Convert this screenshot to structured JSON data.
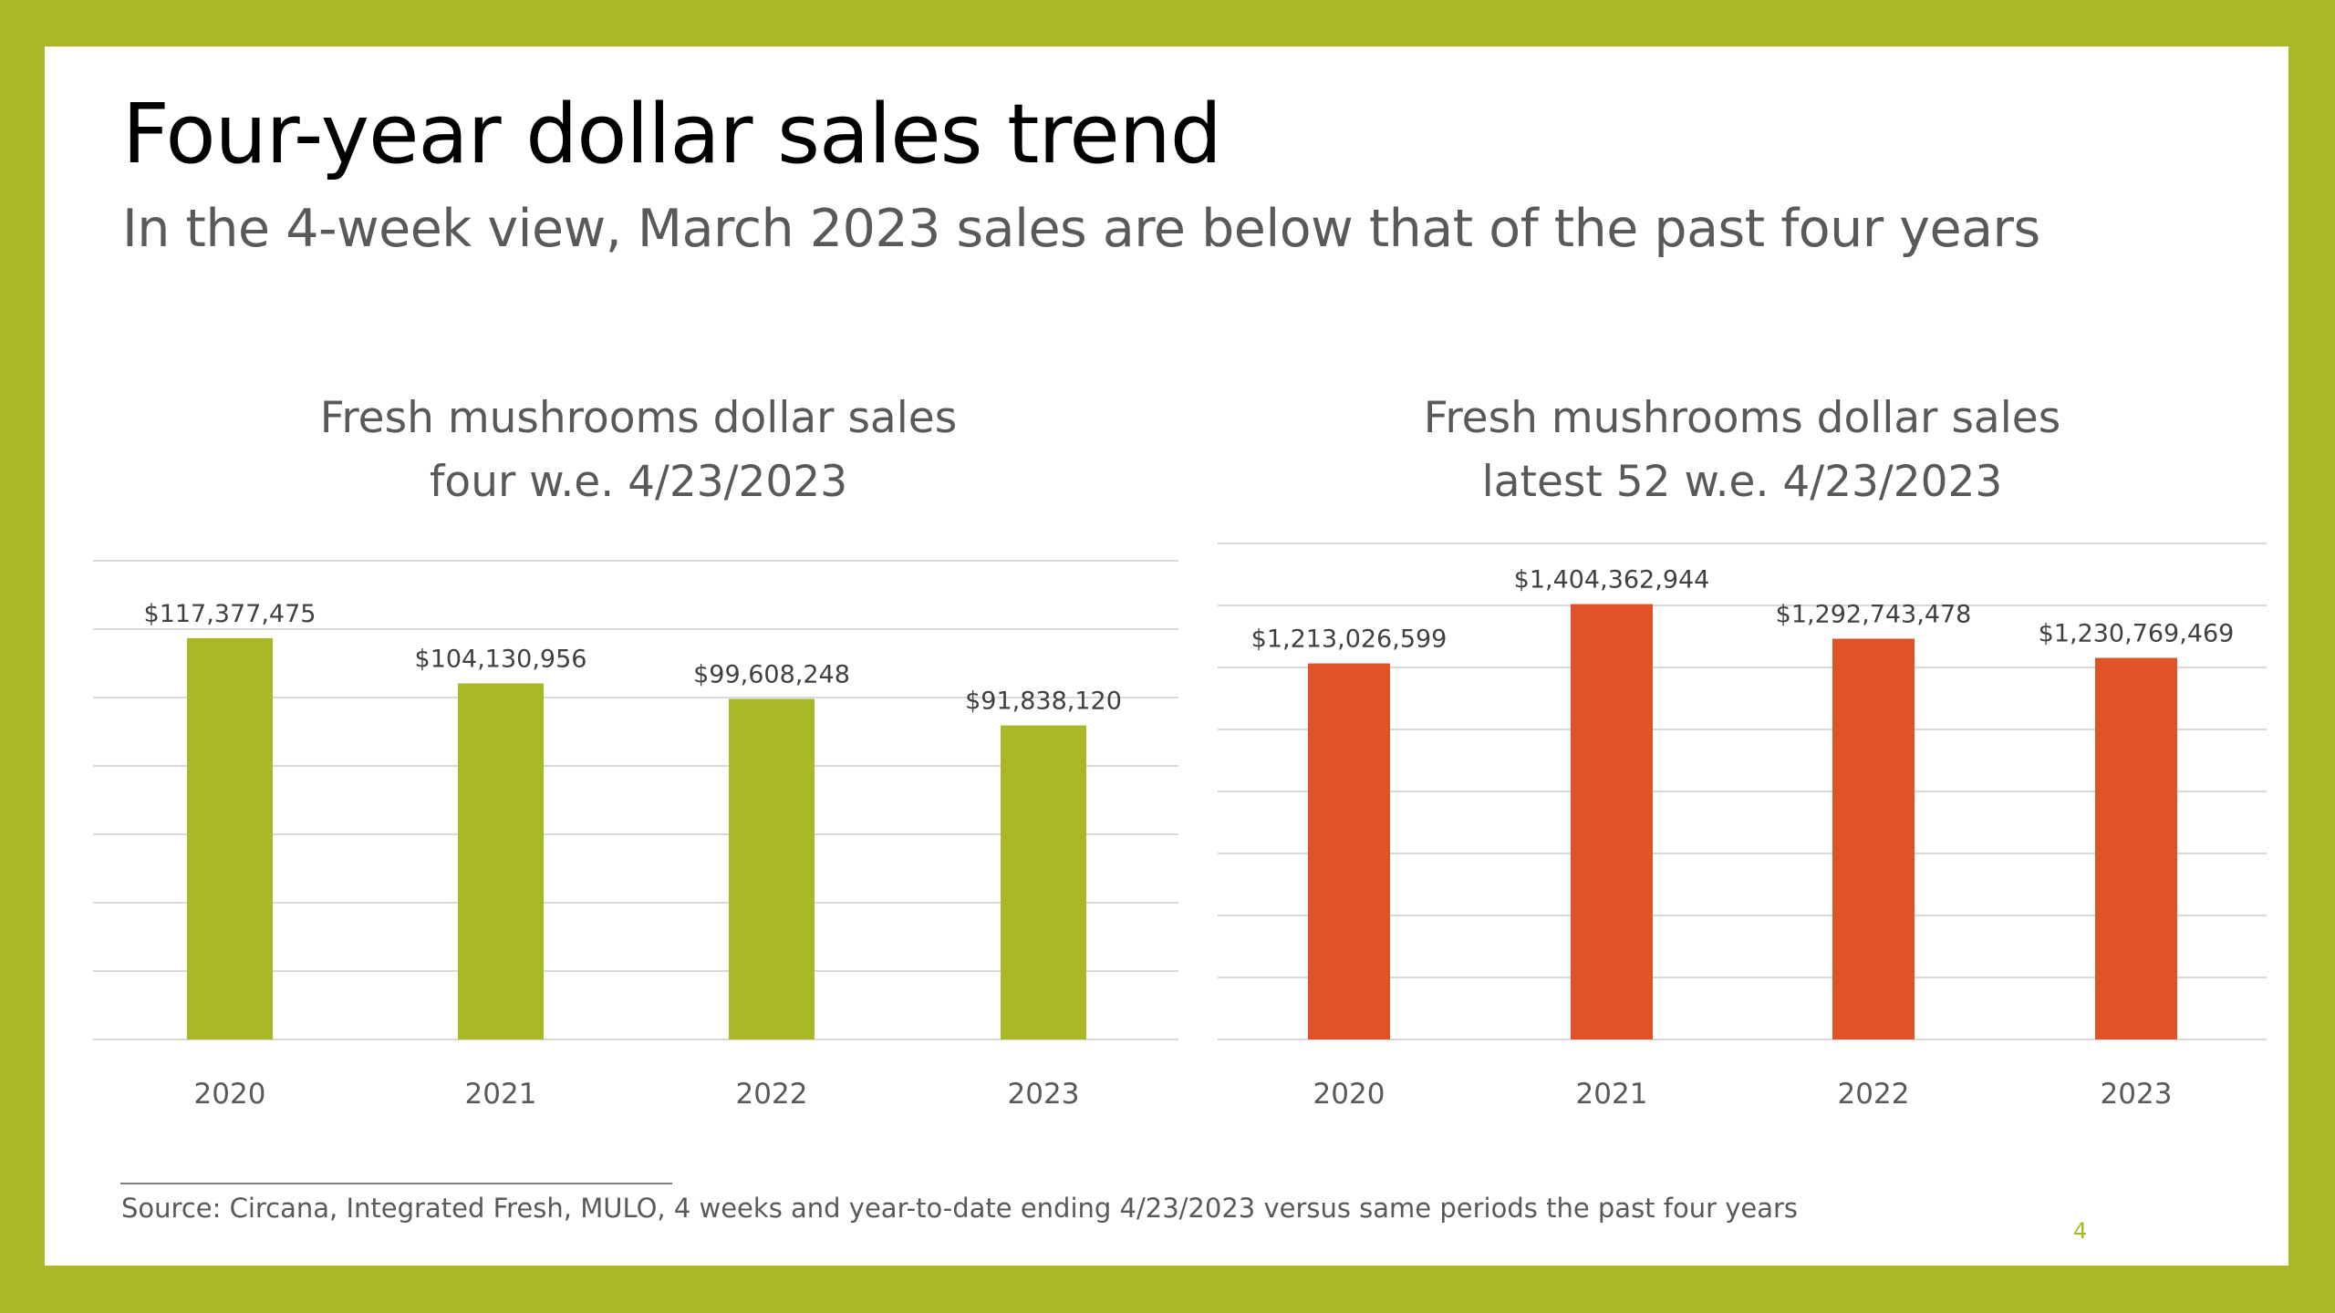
{
  "slide": {
    "title": "Four-year dollar sales trend",
    "subtitle": "In the 4-week view, March 2023 sales are below that of the past four years",
    "source": "Source: Circana, Integrated Fresh, MULO, 4 weeks and year-to-date ending 4/23/2023 versus same periods the past four years",
    "page_number": "4"
  },
  "colors": {
    "frame": "#A8B827",
    "left_bars": "#A8B827",
    "right_bars": "#E05326",
    "gridlines": "#D9D9D9",
    "text": "#595959"
  },
  "chart_data": [
    {
      "type": "bar",
      "title_lines": [
        "Fresh mushrooms dollar sales",
        "four w.e. 4/23/2023"
      ],
      "categories": [
        "2020",
        "2021",
        "2022",
        "2023"
      ],
      "values": [
        117377475,
        104130956,
        99608248,
        91838120
      ],
      "data_labels": [
        "$117,377,475",
        "$104,130,956",
        "$99,608,248",
        "$91,838,120"
      ],
      "ylim": [
        0,
        140000000
      ],
      "gridlines": true,
      "legend": "none",
      "xlabel": "",
      "ylabel": ""
    },
    {
      "type": "bar",
      "title_lines": [
        "Fresh mushrooms dollar sales",
        "latest 52 w.e. 4/23/2023"
      ],
      "categories": [
        "2020",
        "2021",
        "2022",
        "2023"
      ],
      "values": [
        1213026599,
        1404362944,
        1292743478,
        1230769469
      ],
      "data_labels": [
        "$1,213,026,599",
        "$1,404,362,944",
        "$1,292,743,478",
        "$1,230,769,469"
      ],
      "ylim": [
        0,
        1600000000
      ],
      "gridlines": true,
      "legend": "none",
      "xlabel": "",
      "ylabel": ""
    }
  ]
}
